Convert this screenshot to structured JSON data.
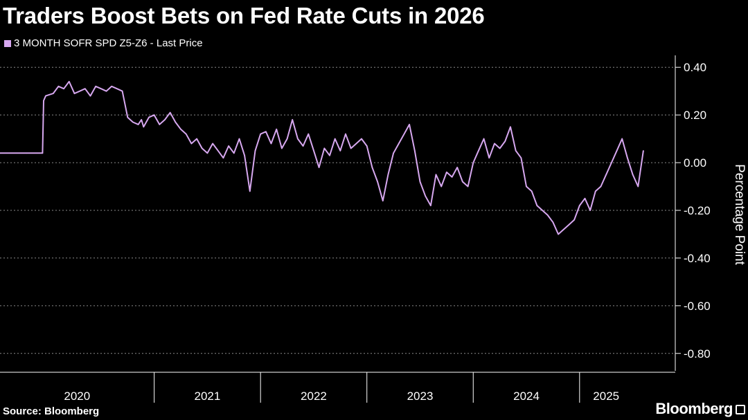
{
  "title": "Traders Boost Bets on Fed Rate Cuts in 2026",
  "source": "Source: Bloomberg",
  "brand": "Bloomberg",
  "colors": {
    "background": "#000000",
    "series": "#d7a8f0",
    "grid": "#ffffff",
    "text": "#ffffff"
  },
  "chart_data": {
    "type": "line",
    "ylabel": "Percentage Point",
    "y_ticks": [
      0.4,
      0.2,
      0.0,
      -0.2,
      -0.4,
      -0.6,
      -0.8
    ],
    "y_tick_labels": [
      "0.40",
      "0.20",
      "0.00",
      "-0.20",
      "-0.40",
      "-0.60",
      "-0.80"
    ],
    "ylim": [
      -0.85,
      0.45
    ],
    "xlim": [
      2019.55,
      2025.9
    ],
    "year_labels": [
      "2020",
      "2021",
      "2022",
      "2023",
      "2024",
      "2025"
    ],
    "year_boundaries": [
      2020.0,
      2021.0,
      2022.0,
      2023.0,
      2024.0,
      2025.0
    ],
    "grid": "horizontal dashed",
    "legend_position": "top-left",
    "series": [
      {
        "name": "3 MONTH SOFR SPD Z5-Z6 - Last Price",
        "x": [
          2019.55,
          2019.8,
          2019.95,
          2019.96,
          2019.98,
          2020.05,
          2020.1,
          2020.15,
          2020.2,
          2020.25,
          2020.3,
          2020.35,
          2020.4,
          2020.45,
          2020.5,
          2020.55,
          2020.6,
          2020.65,
          2020.7,
          2020.75,
          2020.8,
          2020.85,
          2020.88,
          2020.9,
          2020.95,
          2021.0,
          2021.05,
          2021.1,
          2021.15,
          2021.2,
          2021.25,
          2021.3,
          2021.35,
          2021.4,
          2021.45,
          2021.5,
          2021.55,
          2021.6,
          2021.65,
          2021.7,
          2021.75,
          2021.8,
          2021.85,
          2021.9,
          2021.95,
          2022.0,
          2022.05,
          2022.1,
          2022.15,
          2022.2,
          2022.25,
          2022.3,
          2022.35,
          2022.4,
          2022.45,
          2022.5,
          2022.55,
          2022.6,
          2022.65,
          2022.7,
          2022.75,
          2022.8,
          2022.85,
          2022.9,
          2022.95,
          2023.0,
          2023.05,
          2023.1,
          2023.15,
          2023.2,
          2023.25,
          2023.3,
          2023.35,
          2023.4,
          2023.45,
          2023.5,
          2023.55,
          2023.6,
          2023.65,
          2023.7,
          2023.75,
          2023.8,
          2023.85,
          2023.9,
          2023.95,
          2024.0,
          2024.05,
          2024.1,
          2024.15,
          2024.2,
          2024.25,
          2024.3,
          2024.35,
          2024.4,
          2024.45,
          2024.5,
          2024.55,
          2024.6,
          2024.65,
          2024.7,
          2024.75,
          2024.8,
          2024.85,
          2024.9,
          2024.95,
          2025.0,
          2025.05,
          2025.1,
          2025.15,
          2025.2,
          2025.25,
          2025.3,
          2025.35,
          2025.4,
          2025.45,
          2025.5,
          2025.55,
          2025.6
        ],
        "y": [
          0.04,
          0.04,
          0.04,
          0.26,
          0.28,
          0.29,
          0.32,
          0.31,
          0.34,
          0.29,
          0.3,
          0.31,
          0.28,
          0.32,
          0.31,
          0.3,
          0.32,
          0.31,
          0.3,
          0.19,
          0.17,
          0.16,
          0.18,
          0.15,
          0.19,
          0.2,
          0.16,
          0.18,
          0.21,
          0.17,
          0.14,
          0.12,
          0.08,
          0.1,
          0.06,
          0.04,
          0.08,
          0.05,
          0.02,
          0.07,
          0.04,
          0.1,
          0.03,
          -0.12,
          0.05,
          0.12,
          0.13,
          0.08,
          0.14,
          0.06,
          0.1,
          0.18,
          0.1,
          0.07,
          0.12,
          0.05,
          -0.02,
          0.06,
          0.03,
          0.1,
          0.05,
          0.12,
          0.06,
          0.08,
          0.1,
          0.07,
          -0.02,
          -0.08,
          -0.16,
          -0.05,
          0.04,
          0.08,
          0.12,
          0.16,
          0.05,
          -0.08,
          -0.14,
          -0.18,
          -0.05,
          -0.1,
          -0.04,
          -0.06,
          -0.02,
          -0.08,
          -0.1,
          0.0,
          0.05,
          0.1,
          0.02,
          0.08,
          0.06,
          0.09,
          0.15,
          0.05,
          0.02,
          -0.1,
          -0.12,
          -0.18,
          -0.2,
          -0.22,
          -0.25,
          -0.3,
          -0.28,
          -0.26,
          -0.24,
          -0.18,
          -0.15,
          -0.2,
          -0.12,
          -0.1,
          -0.05,
          0.0,
          0.05,
          0.1,
          0.02,
          -0.05,
          -0.1,
          0.05
        ]
      }
    ]
  }
}
